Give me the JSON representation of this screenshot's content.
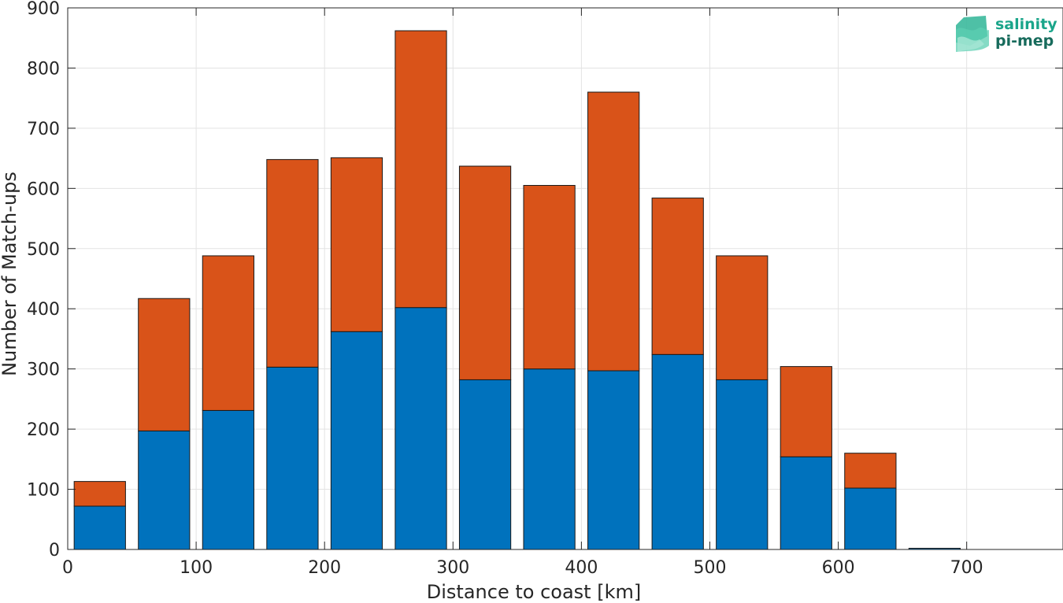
{
  "chart_data": {
    "type": "bar",
    "stacked": true,
    "xlabel": "Distance to coast [km]",
    "ylabel": "Number of Match-ups",
    "xlim": [
      0,
      775
    ],
    "ylim": [
      0,
      900
    ],
    "x_ticks": [
      0,
      100,
      200,
      300,
      400,
      500,
      600,
      700
    ],
    "y_ticks": [
      0,
      100,
      200,
      300,
      400,
      500,
      600,
      700,
      800,
      900
    ],
    "grid": true,
    "bin_width": 50,
    "x": [
      25,
      75,
      125,
      175,
      225,
      275,
      325,
      375,
      425,
      475,
      525,
      575,
      625,
      675
    ],
    "series": [
      {
        "values": [
          72,
          197,
          231,
          303,
          362,
          402,
          282,
          300,
          297,
          324,
          282,
          154,
          102,
          2
        ],
        "color": "#0072BD"
      },
      {
        "values": [
          41,
          220,
          257,
          345,
          289,
          460,
          355,
          305,
          463,
          260,
          206,
          150,
          58,
          0
        ],
        "color": "#D95319"
      }
    ]
  },
  "logo": {
    "line1": "salinity",
    "line2": "pi-mep",
    "color1": "#1aa58a",
    "color2": "#176b5c"
  }
}
